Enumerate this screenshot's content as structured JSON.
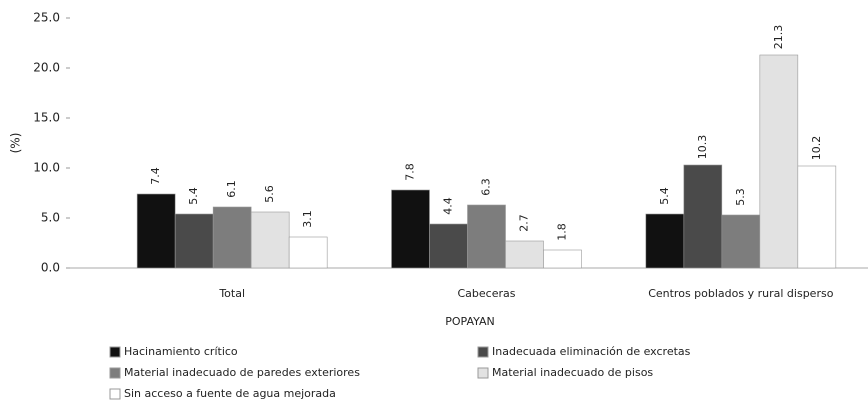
{
  "chart_data": {
    "type": "bar",
    "y_label": "(%)",
    "x_label": "POPAYAN",
    "categories": [
      "Total",
      "Cabeceras",
      "Centros poblados y rural disperso"
    ],
    "series": [
      {
        "name": "Hacinamiento crítico",
        "color": "#111111",
        "values": [
          7.4,
          7.8,
          5.4
        ]
      },
      {
        "name": "Inadecuada eliminación de excretas",
        "color": "#4a4a4a",
        "values": [
          5.4,
          4.4,
          10.3
        ]
      },
      {
        "name": "Material inadecuado de paredes exteriores",
        "color": "#7d7d7d",
        "values": [
          6.1,
          6.3,
          5.3
        ]
      },
      {
        "name": "Material inadecuado de pisos",
        "color": "#e2e2e2",
        "values": [
          5.6,
          2.7,
          21.3
        ]
      },
      {
        "name": "Sin acceso a fuente de agua mejorada",
        "color": "#ffffff",
        "values": [
          3.1,
          1.8,
          10.2
        ]
      }
    ],
    "ylim": [
      0,
      25
    ],
    "yticks": [
      {
        "value": 0,
        "label": "0.0"
      },
      {
        "value": 5,
        "label": "5.0"
      },
      {
        "value": 10,
        "label": "10.0"
      },
      {
        "value": 15,
        "label": "15.0"
      },
      {
        "value": 20,
        "label": "20.0"
      },
      {
        "value": 25,
        "label": "25.0"
      }
    ],
    "legend": "bottom"
  }
}
